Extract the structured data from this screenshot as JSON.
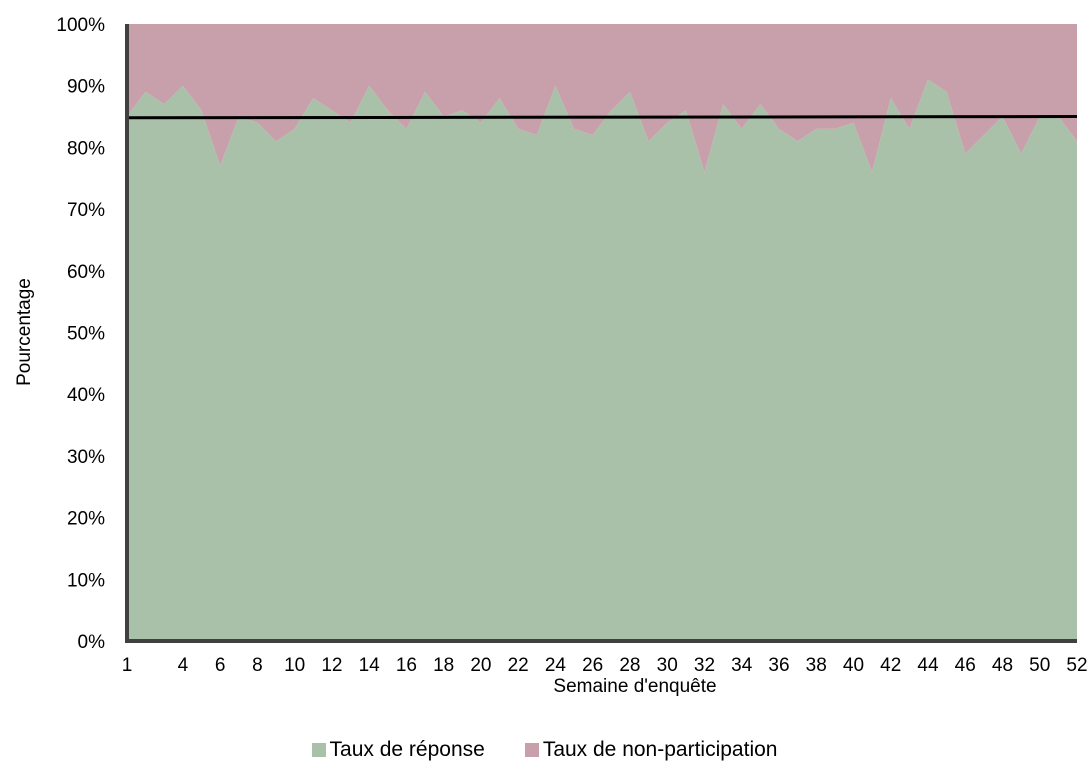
{
  "chart_data": {
    "type": "area",
    "stacked": true,
    "xlabel": "Semaine d'enquête",
    "ylabel": "Pourcentage",
    "ylim": [
      0,
      100
    ],
    "y_ticks": [
      "0%",
      "10%",
      "20%",
      "30%",
      "40%",
      "50%",
      "60%",
      "70%",
      "80%",
      "90%",
      "100%"
    ],
    "x": [
      1,
      2,
      3,
      4,
      5,
      6,
      7,
      8,
      9,
      10,
      11,
      12,
      13,
      14,
      15,
      16,
      17,
      18,
      19,
      20,
      21,
      22,
      23,
      24,
      25,
      26,
      27,
      28,
      29,
      30,
      31,
      32,
      33,
      34,
      35,
      36,
      37,
      38,
      39,
      40,
      41,
      42,
      43,
      44,
      45,
      46,
      47,
      48,
      49,
      50,
      51,
      52
    ],
    "x_tick_labels": [
      "1",
      "4",
      "6",
      "8",
      "10",
      "12",
      "14",
      "16",
      "18",
      "20",
      "22",
      "24",
      "26",
      "28",
      "30",
      "32",
      "34",
      "36",
      "38",
      "40",
      "42",
      "44",
      "46",
      "48",
      "50",
      "52"
    ],
    "series": [
      {
        "name": "Taux de réponse",
        "color": "#a9c1a9",
        "values": [
          85,
          89,
          87,
          90,
          86,
          77,
          85,
          84,
          81,
          83,
          88,
          86,
          84,
          90,
          86,
          83,
          89,
          85,
          86,
          84,
          88,
          83,
          82,
          90,
          83,
          82,
          86,
          89,
          81,
          84,
          86,
          76,
          87,
          83,
          87,
          83,
          81,
          83,
          83,
          84,
          76,
          88,
          83,
          91,
          89,
          79,
          82,
          85,
          79,
          85,
          85,
          81
        ]
      },
      {
        "name": "Taux de non-participation",
        "color": "#c8a0ab",
        "values": [
          15,
          11,
          13,
          10,
          14,
          23,
          15,
          16,
          19,
          17,
          12,
          14,
          16,
          10,
          14,
          17,
          11,
          15,
          14,
          16,
          12,
          17,
          18,
          10,
          17,
          18,
          14,
          11,
          19,
          16,
          14,
          24,
          13,
          17,
          13,
          17,
          19,
          17,
          17,
          16,
          24,
          12,
          17,
          9,
          11,
          21,
          18,
          15,
          21,
          15,
          15,
          19
        ]
      }
    ],
    "trend_line": {
      "start": 84.8,
      "end": 85.0,
      "color": "#000000"
    },
    "legend": "bottom-center",
    "grid": false
  }
}
